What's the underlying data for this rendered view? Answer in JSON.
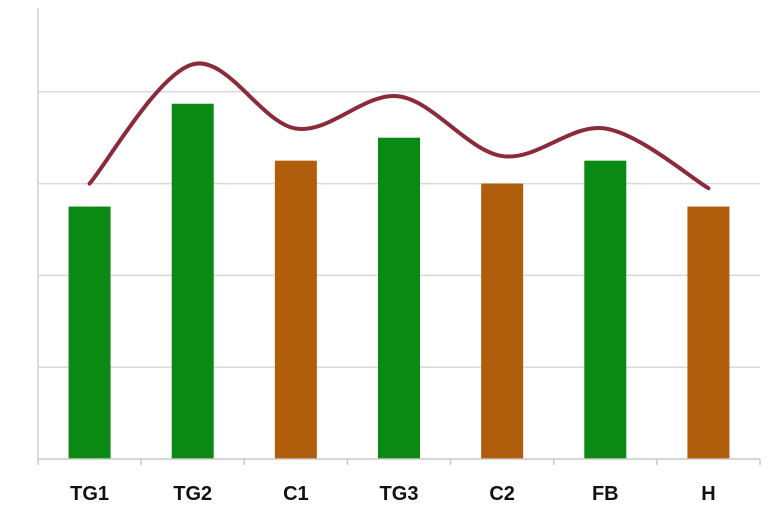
{
  "chart_data": {
    "type": "bar",
    "categories": [
      "TG1",
      "TG2",
      "C1",
      "TG3",
      "C2",
      "FB",
      "H"
    ],
    "values": [
      2.75,
      3.87,
      3.25,
      3.5,
      3.0,
      3.25,
      2.75
    ],
    "bar_colors": [
      "#0a8a14",
      "#0a8a14",
      "#b05e0b",
      "#0a8a14",
      "#b05e0b",
      "#0a8a14",
      "#b05e0b"
    ],
    "trend_line": {
      "values": [
        3.0,
        4.3,
        3.6,
        3.95,
        3.3,
        3.6,
        2.95
      ],
      "color": "#8b2a3a",
      "smooth": true
    },
    "ylim": [
      0,
      5
    ],
    "gridlines": [
      1,
      2,
      3,
      4
    ],
    "grid": true,
    "legend": "none",
    "title": "",
    "xlabel": "",
    "ylabel": ""
  }
}
